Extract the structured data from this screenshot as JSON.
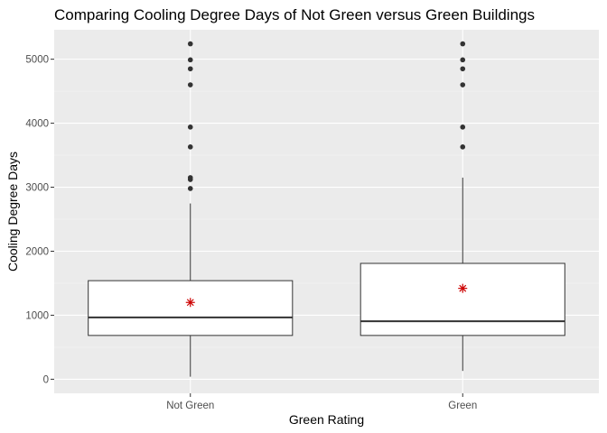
{
  "chart_data": {
    "type": "boxplot",
    "title": "Comparing Cooling Degree Days of Not Green versus Green Buildings",
    "xlabel": "Green Rating",
    "ylabel": "Cooling Degree Days",
    "categories": [
      "Not Green",
      "Green"
    ],
    "ylim": [
      -220,
      5460
    ],
    "yticks": [
      "0",
      "1000",
      "2000",
      "3000",
      "4000",
      "5000"
    ],
    "grid": true,
    "legend": "none",
    "boxes": [
      {
        "category": "Not Green",
        "whisker_low": 39,
        "q1": 684,
        "median": 966,
        "q3": 1540,
        "whisker_high": 2746,
        "mean": 1200,
        "outliers": [
          2980,
          3120,
          3150,
          3630,
          3940,
          4600,
          4850,
          4990,
          5240
        ]
      },
      {
        "category": "Green",
        "whisker_low": 130,
        "q1": 684,
        "median": 905,
        "q3": 1810,
        "whisker_high": 3150,
        "mean": 1420,
        "outliers": [
          3630,
          3940,
          4600,
          4850,
          4990,
          5240
        ]
      }
    ],
    "colors": {
      "panel": "#ebebeb",
      "grid_major": "#ffffff",
      "grid_minor": "#f5f5f5",
      "box_fill": "#ffffff",
      "box_line": "#333333",
      "outlier": "#333333",
      "mean_marker": "#cc0000"
    }
  }
}
